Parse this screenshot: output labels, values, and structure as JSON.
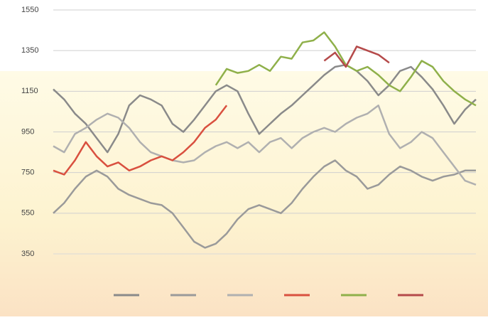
{
  "chart_data": {
    "type": "line",
    "categories": [
      null,
      null,
      null,
      null,
      null,
      null,
      null,
      null,
      null,
      null,
      null,
      null,
      null,
      null,
      null,
      null,
      null,
      null,
      null,
      null,
      null,
      null,
      null,
      null,
      null,
      null,
      null,
      null,
      null,
      null,
      null,
      null,
      null,
      null,
      null,
      null,
      null,
      null,
      null,
      null
    ],
    "ylim": [
      350,
      1550
    ],
    "yticks": [
      350,
      550,
      750,
      950,
      1150,
      1350,
      1550
    ],
    "grid": true,
    "series": [
      {
        "color": "#8a8a8a",
        "values": [
          1160,
          1110,
          1040,
          990,
          920,
          850,
          940,
          1080,
          1130,
          1110,
          1080,
          990,
          950,
          1010,
          1080,
          1150,
          1180,
          1150,
          1040,
          940,
          990,
          1040,
          1080,
          1130,
          1180,
          1230,
          1270,
          1280,
          1250,
          1200,
          1130,
          1180,
          1250,
          1270,
          1220,
          1160,
          1080,
          990,
          1060,
          1110
        ]
      },
      {
        "color": "#9a9a9a",
        "values": [
          550,
          600,
          670,
          730,
          760,
          730,
          670,
          640,
          620,
          600,
          590,
          550,
          480,
          410,
          380,
          400,
          450,
          520,
          570,
          590,
          570,
          550,
          600,
          670,
          730,
          780,
          810,
          760,
          730,
          670,
          690,
          740,
          780,
          760,
          730,
          710,
          730,
          740,
          760,
          760
        ]
      },
      {
        "color": "#b0b0b0",
        "values": [
          880,
          850,
          940,
          970,
          1010,
          1040,
          1020,
          970,
          900,
          850,
          830,
          810,
          800,
          810,
          850,
          880,
          900,
          870,
          900,
          850,
          900,
          920,
          870,
          920,
          950,
          970,
          950,
          990,
          1020,
          1040,
          1080,
          940,
          870,
          900,
          950,
          920,
          850,
          780,
          710,
          690
        ]
      },
      {
        "color": "#d9503f",
        "values": [
          760,
          740,
          810,
          900,
          830,
          780,
          800,
          760,
          780,
          810,
          830,
          810,
          850,
          900,
          970,
          1010,
          1080,
          null,
          null,
          null,
          null,
          null,
          null,
          null,
          null,
          null,
          null,
          null,
          null,
          null,
          null,
          null,
          null,
          null,
          null,
          null,
          null,
          null,
          null,
          null
        ]
      },
      {
        "color": "#8fb04a",
        "values": [
          null,
          null,
          null,
          null,
          null,
          null,
          null,
          null,
          null,
          null,
          null,
          null,
          null,
          null,
          null,
          1180,
          1260,
          1240,
          1250,
          1280,
          1250,
          1320,
          1310,
          1390,
          1400,
          1440,
          1370,
          1280,
          1250,
          1270,
          1230,
          1180,
          1150,
          1220,
          1300,
          1270,
          1200,
          1150,
          1110,
          1080
        ]
      },
      {
        "color": "#b54a4a",
        "values": [
          null,
          null,
          null,
          null,
          null,
          null,
          null,
          null,
          null,
          null,
          null,
          null,
          null,
          null,
          null,
          null,
          null,
          null,
          null,
          null,
          null,
          null,
          null,
          null,
          null,
          1300,
          1340,
          1270,
          1370,
          1350,
          1330,
          1290,
          null,
          null,
          null,
          null,
          null,
          null,
          null,
          null
        ]
      }
    ]
  }
}
